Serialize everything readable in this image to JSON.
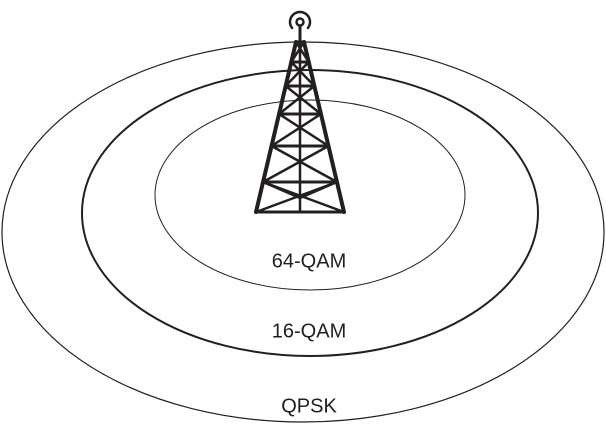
{
  "zones": [
    {
      "label": "64-QAM"
    },
    {
      "label": "16-QAM"
    },
    {
      "label": "QPSK"
    }
  ]
}
